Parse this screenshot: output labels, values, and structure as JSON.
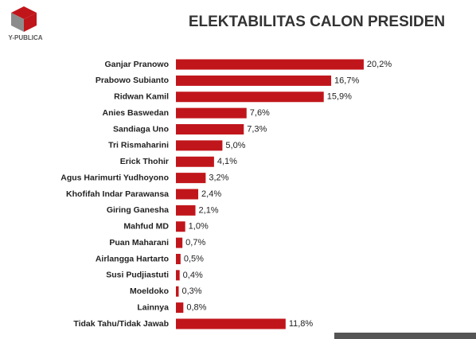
{
  "brand": "Y-PUBLICA",
  "chart_data": {
    "type": "bar",
    "orientation": "horizontal",
    "title": "ELEKTABILITAS CALON PRESIDEN",
    "categories": [
      "Ganjar Pranowo",
      "Prabowo Subianto",
      "Ridwan Kamil",
      "Anies Baswedan",
      "Sandiaga Uno",
      "Tri Rismaharini",
      "Erick Thohir",
      "Agus Harimurti Yudhoyono",
      "Khofifah Indar Parawansa",
      "Giring Ganesha",
      "Mahfud MD",
      "Puan Maharani",
      "Airlangga Hartarto",
      "Susi Pudjiastuti",
      "Moeldoko",
      "Lainnya",
      "Tidak Tahu/Tidak Jawab"
    ],
    "values": [
      20.2,
      16.7,
      15.9,
      7.6,
      7.3,
      5.0,
      4.1,
      3.2,
      2.4,
      2.1,
      1.0,
      0.7,
      0.5,
      0.4,
      0.3,
      0.8,
      11.8
    ],
    "value_labels": [
      "20,2%",
      "16,7%",
      "15,9%",
      "7,6%",
      "7,3%",
      "5,0%",
      "4,1%",
      "3,2%",
      "2,4%",
      "2,1%",
      "1,0%",
      "0,7%",
      "0,5%",
      "0,4%",
      "0,3%",
      "0,8%",
      "11,8%"
    ],
    "color": "#c0161b"
  }
}
